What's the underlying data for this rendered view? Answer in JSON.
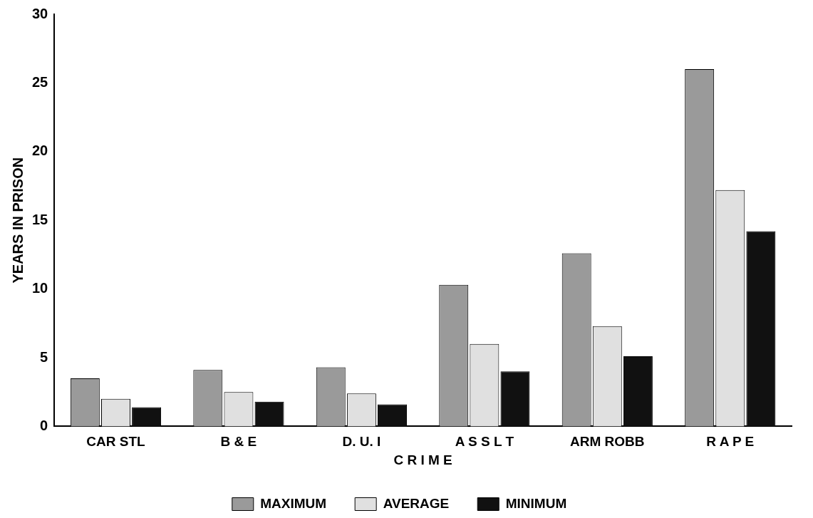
{
  "chart_data": {
    "type": "bar",
    "xlabel": "C R I M E",
    "ylabel": "YEARS IN PRISON",
    "categories": [
      "CAR STL",
      "B & E",
      "D. U. I",
      "A S S L T",
      "ARM ROBB",
      "R A P E"
    ],
    "series": [
      {
        "name": "MAXIMUM",
        "color": "#9a9a9a",
        "values": [
          3.5,
          4.1,
          4.3,
          10.3,
          12.6,
          26
        ]
      },
      {
        "name": "AVERAGE",
        "color": "#e0e0e0",
        "values": [
          2.0,
          2.5,
          2.4,
          6.0,
          7.3,
          17.2
        ]
      },
      {
        "name": "MINIMUM",
        "color": "#111111",
        "values": [
          1.4,
          1.8,
          1.6,
          4.0,
          5.1,
          14.2
        ]
      }
    ],
    "ylim": [
      0,
      30
    ],
    "yticks": [
      0,
      5,
      10,
      15,
      20,
      25,
      30
    ],
    "grid": false,
    "legend": "bottom"
  }
}
